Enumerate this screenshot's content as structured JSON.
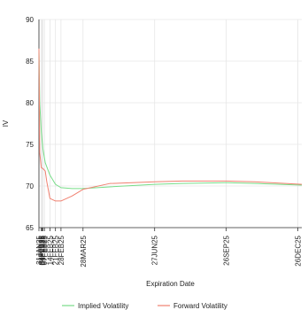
{
  "chart_data": {
    "type": "line",
    "xlabel": "Expiration Date",
    "ylabel": "IV",
    "ylim": [
      65,
      90
    ],
    "yticks": [
      65,
      70,
      75,
      80,
      85,
      90
    ],
    "grid": true,
    "legend_position": "bottom",
    "x_tick_labels": [
      "31JAN25",
      "03FEB25",
      "04FEB25",
      "05FEB25",
      "07FEB25",
      "14FEB25",
      "21FEB25",
      "28FEB25",
      "28MAR25",
      "27JUN25",
      "26SEP25",
      "26DEC25"
    ],
    "x_tick_dates": [
      "2025-01-31",
      "2025-02-03",
      "2025-02-04",
      "2025-02-05",
      "2025-02-07",
      "2025-02-14",
      "2025-02-21",
      "2025-02-28",
      "2025-03-28",
      "2025-06-27",
      "2025-09-26",
      "2025-12-26"
    ],
    "x_range": [
      "2025-01-31",
      "2025-12-31"
    ],
    "series": [
      {
        "name": "Implied Volatility",
        "color": "#77dd88",
        "x": [
          "2025-01-31",
          "2025-02-01",
          "2025-02-03",
          "2025-02-05",
          "2025-02-08",
          "2025-02-14",
          "2025-02-21",
          "2025-02-28",
          "2025-03-14",
          "2025-03-28",
          "2025-05-01",
          "2025-06-27",
          "2025-08-01",
          "2025-09-26",
          "2025-11-01",
          "2025-12-31"
        ],
        "values": [
          86.5,
          80.0,
          76.5,
          74.5,
          72.8,
          71.3,
          70.2,
          69.8,
          69.7,
          69.7,
          69.9,
          70.2,
          70.3,
          70.4,
          70.3,
          70.1
        ]
      },
      {
        "name": "Forward Volatility",
        "color": "#f08070",
        "x": [
          "2025-01-31",
          "2025-02-01",
          "2025-02-03",
          "2025-02-05",
          "2025-02-08",
          "2025-02-10",
          "2025-02-14",
          "2025-02-21",
          "2025-02-28",
          "2025-03-14",
          "2025-03-28",
          "2025-05-01",
          "2025-06-27",
          "2025-08-01",
          "2025-09-26",
          "2025-11-01",
          "2025-12-31"
        ],
        "values": [
          86.5,
          74.0,
          72.2,
          72.1,
          71.8,
          70.5,
          68.5,
          68.2,
          68.2,
          68.8,
          69.6,
          70.3,
          70.5,
          70.6,
          70.6,
          70.5,
          70.2
        ]
      }
    ]
  }
}
